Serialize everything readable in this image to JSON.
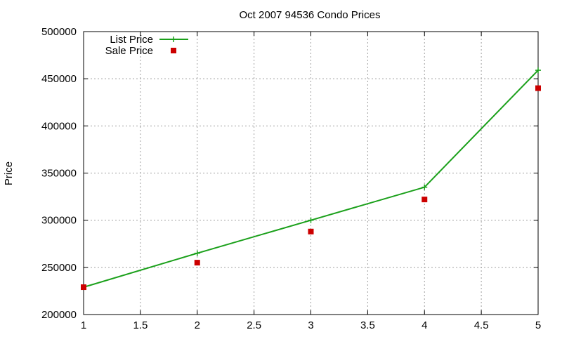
{
  "chart_data": {
    "type": "line",
    "title": "Oct 2007 94536 Condo Prices",
    "xlabel": "",
    "ylabel": "Price",
    "xlim": [
      1,
      5
    ],
    "ylim": [
      200000,
      500000
    ],
    "xticks": [
      "1",
      "1.5",
      "2",
      "2.5",
      "3",
      "3.5",
      "4",
      "4.5",
      "5"
    ],
    "yticks": [
      "200000",
      "250000",
      "300000",
      "350000",
      "400000",
      "450000",
      "500000"
    ],
    "grid": true,
    "legend_position": "top-left",
    "series": [
      {
        "name": "List Price",
        "style": "linespoints",
        "marker": "plus",
        "color": "#1aa01a",
        "x": [
          1,
          2,
          3,
          4,
          5
        ],
        "y": [
          229000,
          265000,
          300000,
          335000,
          459000
        ]
      },
      {
        "name": "Sale Price",
        "style": "points",
        "marker": "square",
        "color": "#cc0000",
        "x": [
          1,
          2,
          3,
          4,
          5
        ],
        "y": [
          229000,
          255000,
          288000,
          322000,
          440000
        ]
      }
    ]
  }
}
